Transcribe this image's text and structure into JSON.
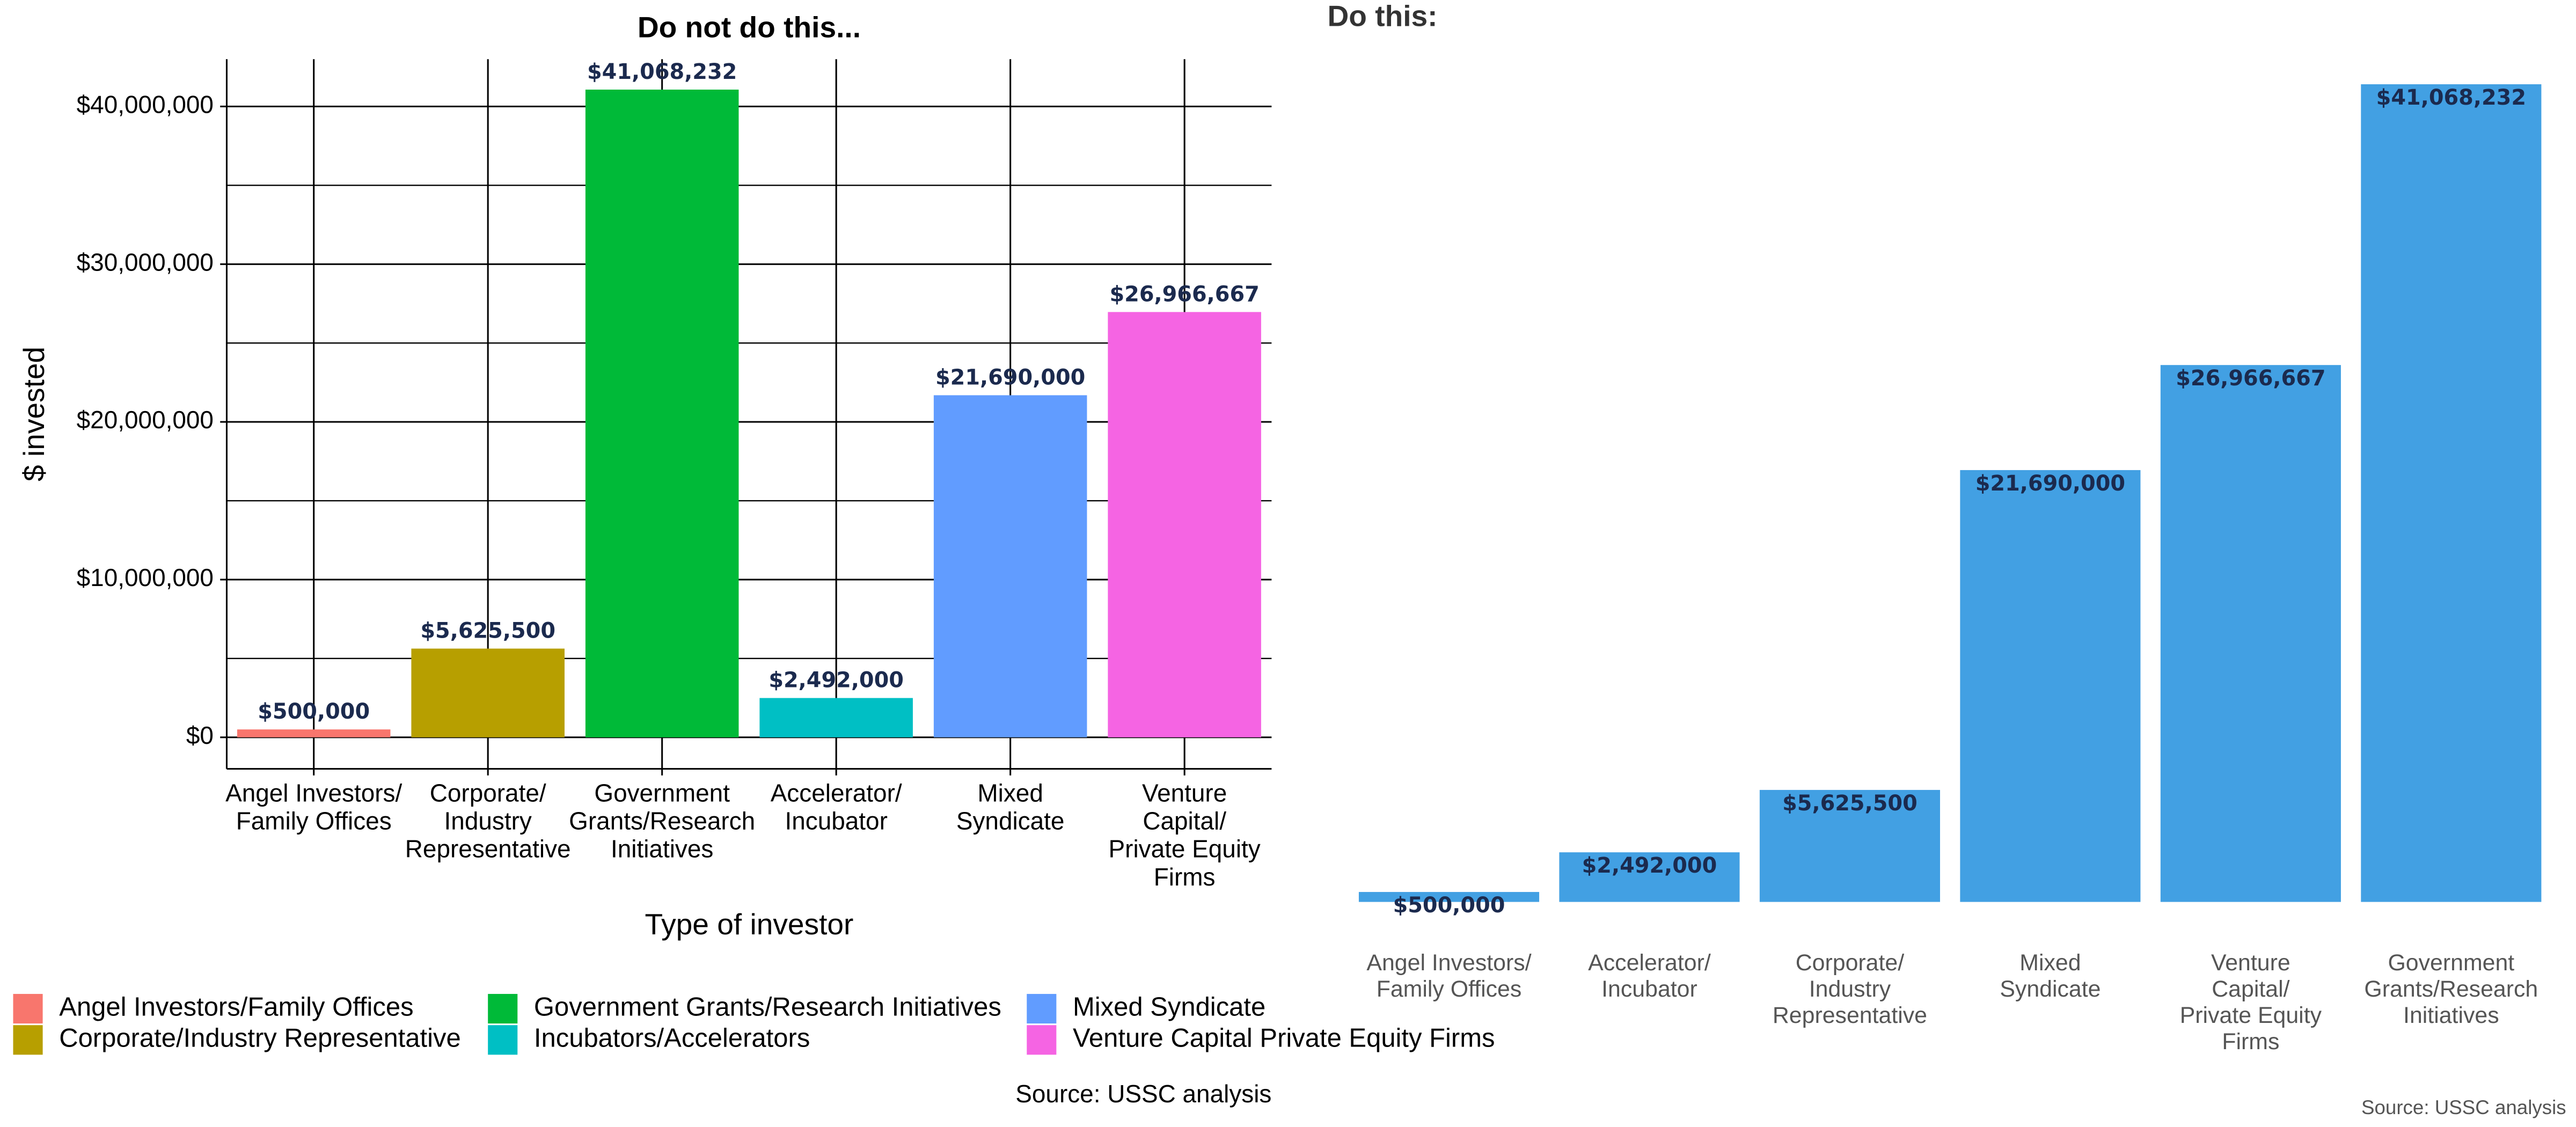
{
  "chart_data": [
    {
      "type": "bar",
      "title": "Do not do this...",
      "categories": [
        "Angel Investors/\nFamily Offices",
        "Corporate/\nIndustry\nRepresentative",
        "Government\nGrants/Research\nInitiatives",
        "Accelerator/\nIncubator",
        "Mixed\nSyndicate",
        "Venture\nCapital/\nPrivate Equity\nFirms"
      ],
      "values": [
        500000,
        5625500,
        41068232,
        2492000,
        21690000,
        26966667
      ],
      "value_labels": [
        "$500,000",
        "$5,625,500",
        "$41,068,232",
        "$2,492,000",
        "$21,690,000",
        "$26,966,667"
      ],
      "colors": [
        "#f8766d",
        "#b79f00",
        "#00ba38",
        "#00bfc4",
        "#619cff",
        "#f564e3"
      ],
      "legend": [
        {
          "name": "Angel Investors/Family Offices",
          "color": "#f8766d"
        },
        {
          "name": "Corporate/Industry Representative",
          "color": "#b79f00"
        },
        {
          "name": "Government Grants/Research Initiatives",
          "color": "#00ba38"
        },
        {
          "name": "Incubators/Accelerators",
          "color": "#00bfc4"
        },
        {
          "name": "Mixed Syndicate",
          "color": "#619cff"
        },
        {
          "name": "Venture Capital Private Equity Firms",
          "color": "#f564e3"
        }
      ],
      "xlabel": "Type of investor",
      "ylabel": "$ invested",
      "ylim": [
        -2000000,
        43000000
      ],
      "yticks": [
        {
          "value": 0,
          "label": "$0"
        },
        {
          "value": 10000000,
          "label": "$10,000,000"
        },
        {
          "value": 20000000,
          "label": "$20,000,000"
        },
        {
          "value": 30000000,
          "label": "$30,000,000"
        },
        {
          "value": 40000000,
          "label": "$40,000,000"
        }
      ],
      "minor_yticks": [
        5000000,
        15000000,
        25000000,
        35000000
      ],
      "grid": true,
      "source": "Source: USSC analysis"
    },
    {
      "type": "bar",
      "title": "Do this:",
      "categories": [
        "Angel Investors/\nFamily Offices",
        "Accelerator/\nIncubator",
        "Corporate/\nIndustry\nRepresentative",
        "Mixed\nSyndicate",
        "Venture\nCapital/\nPrivate Equity\nFirms",
        "Government\nGrants/Research\nInitiatives"
      ],
      "values": [
        500000,
        2492000,
        5625500,
        21690000,
        26966667,
        41068232
      ],
      "value_labels": [
        "$500,000",
        "$2,492,000",
        "$5,625,500",
        "$21,690,000",
        "$26,966,667",
        "$41,068,232"
      ],
      "color": "#42a0e3",
      "ylim": [
        0,
        42000000
      ],
      "grid": false,
      "source": "Source: USSC analysis"
    }
  ]
}
